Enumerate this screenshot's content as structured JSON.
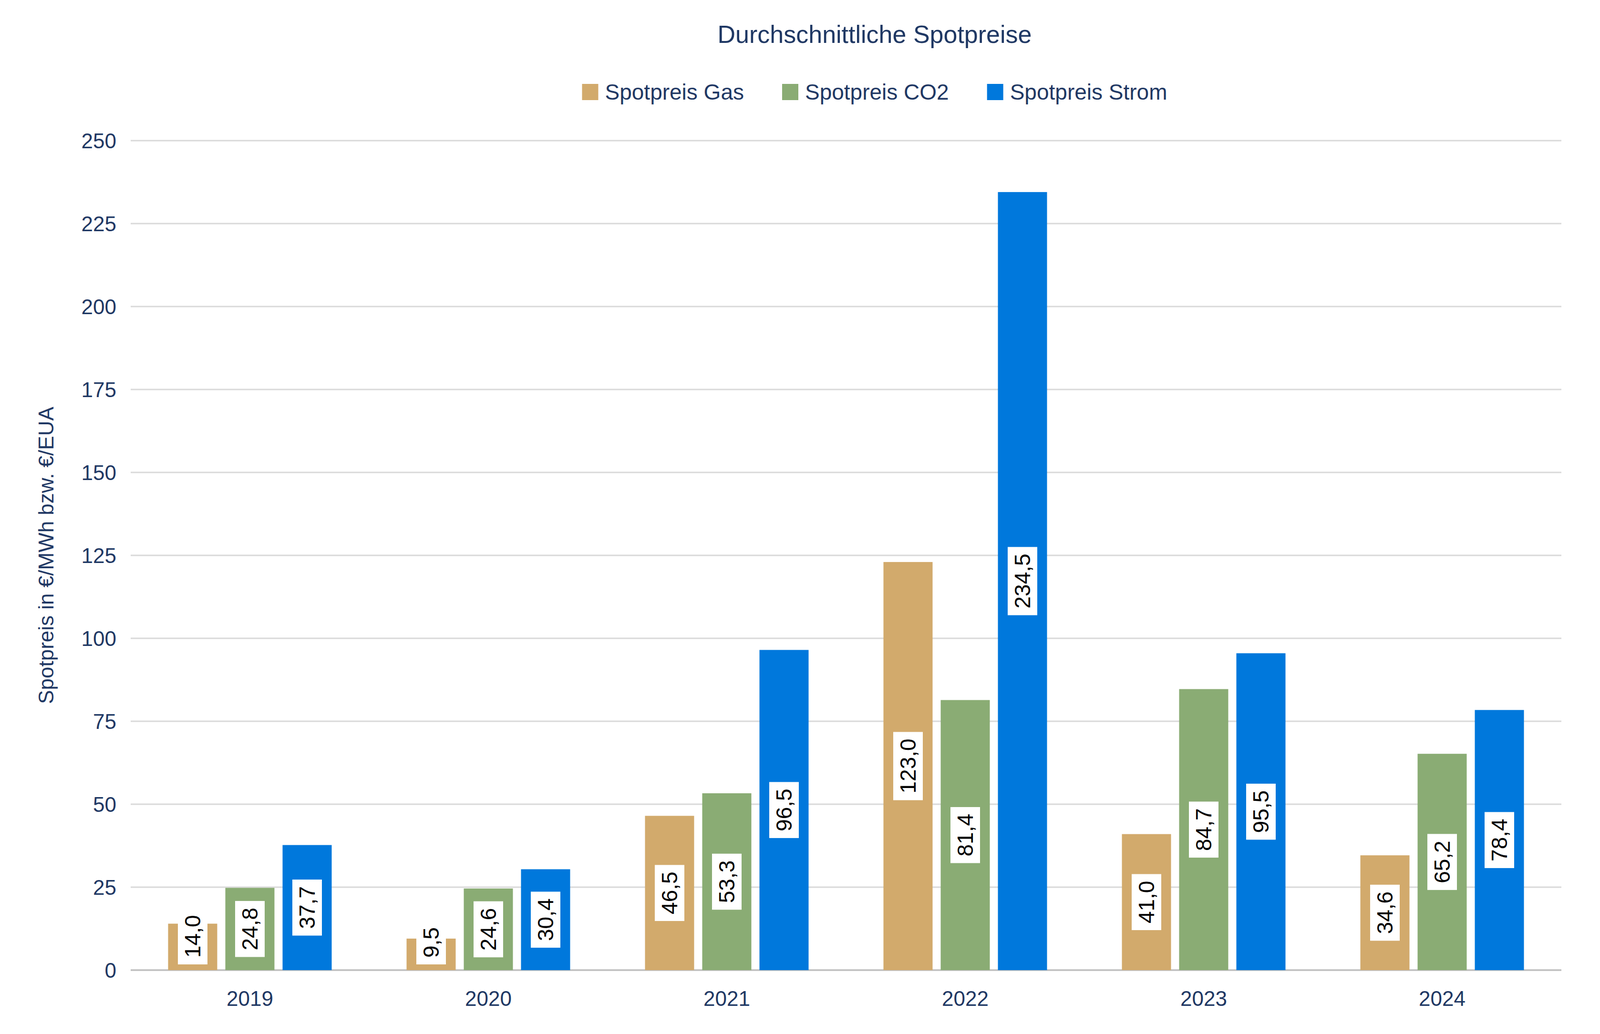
{
  "chart_data": {
    "type": "bar",
    "title": "Durchschnittliche Spotpreise",
    "y_label": "Spotpreis in €/MWh bzw. €/EUA",
    "categories": [
      "2019",
      "2020",
      "2021",
      "2022",
      "2023",
      "2024"
    ],
    "series": [
      {
        "name": "Spotpreis Gas",
        "color": "#D2AA6C",
        "values": [
          14.0,
          9.5,
          46.5,
          123.0,
          41.0,
          34.6
        ],
        "value_labels": [
          "14,0",
          "9,5",
          "46,5",
          "123,0",
          "41,0",
          "34,6"
        ]
      },
      {
        "name": "Spotpreis CO2",
        "color": "#8AAC74",
        "values": [
          24.8,
          24.6,
          53.3,
          81.4,
          84.7,
          65.2
        ],
        "value_labels": [
          "24,8",
          "24,6",
          "53,3",
          "81,4",
          "84,7",
          "65,2"
        ]
      },
      {
        "name": "Spotpreis Strom",
        "color": "#0078DC",
        "values": [
          37.7,
          30.4,
          96.5,
          234.5,
          95.5,
          78.4
        ],
        "value_labels": [
          "37,7",
          "30,4",
          "96,5",
          "234,5",
          "95,5",
          "78,4"
        ]
      }
    ],
    "ylim": [
      0,
      250
    ],
    "yticks": [
      0,
      25,
      50,
      75,
      100,
      125,
      150,
      175,
      200,
      225,
      250
    ],
    "grid": true,
    "legend": "top",
    "data_labels": true
  }
}
